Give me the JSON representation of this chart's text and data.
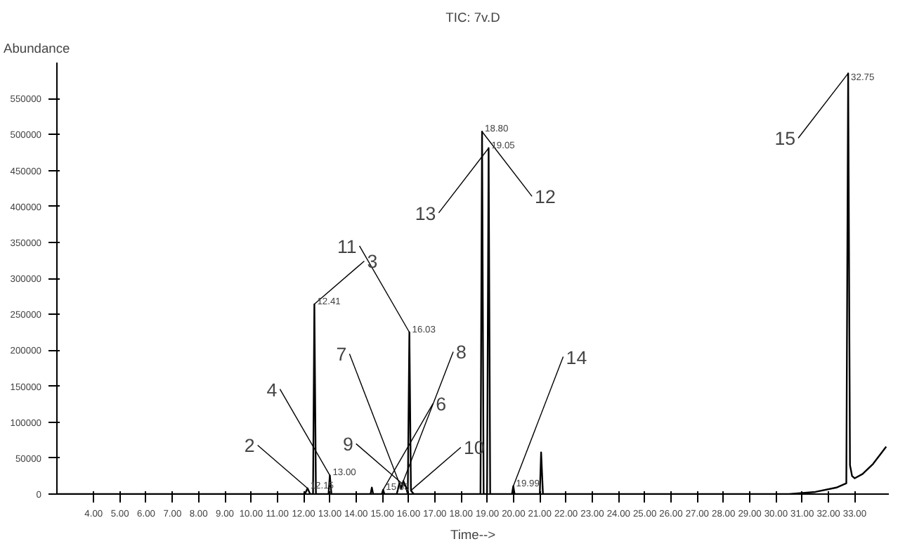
{
  "chart_data": {
    "type": "line",
    "title": "TIC: 7v.D",
    "xlabel": "Time-->",
    "ylabel": "Abundance",
    "xlim": [
      2.6,
      34.3
    ],
    "ylim": [
      0,
      600000
    ],
    "xticks": [
      {
        "value": 4,
        "label": "4.00"
      },
      {
        "value": 5,
        "label": "5.00"
      },
      {
        "value": 6,
        "label": "6.00"
      },
      {
        "value": 7,
        "label": "7.00"
      },
      {
        "value": 8,
        "label": "8.00"
      },
      {
        "value": 9,
        "label": "9.00"
      },
      {
        "value": 10,
        "label": "10.00"
      },
      {
        "value": 11,
        "label": "11.00"
      },
      {
        "value": 12,
        "label": "12.00"
      },
      {
        "value": 13,
        "label": "13.00"
      },
      {
        "value": 14,
        "label": "14.00"
      },
      {
        "value": 15,
        "label": "15.00"
      },
      {
        "value": 16,
        "label": "16.00"
      },
      {
        "value": 17,
        "label": "17.00"
      },
      {
        "value": 18,
        "label": "18.00"
      },
      {
        "value": 19,
        "label": "19.00"
      },
      {
        "value": 20,
        "label": "20.00"
      },
      {
        "value": 21,
        "label": "21.00"
      },
      {
        "value": 22,
        "label": "22.00"
      },
      {
        "value": 23,
        "label": "23.00"
      },
      {
        "value": 24,
        "label": "24.00"
      },
      {
        "value": 25,
        "label": "25.00"
      },
      {
        "value": 26,
        "label": "26.00"
      },
      {
        "value": 27,
        "label": "27.00"
      },
      {
        "value": 28,
        "label": "28.00"
      },
      {
        "value": 29,
        "label": "29.00"
      },
      {
        "value": 30,
        "label": "30.00"
      },
      {
        "value": 31,
        "label": "31.00"
      },
      {
        "value": 32,
        "label": "32.00"
      },
      {
        "value": 33,
        "label": "33.00"
      }
    ],
    "yticks": [
      0,
      50000,
      100000,
      150000,
      200000,
      250000,
      300000,
      350000,
      400000,
      450000,
      500000,
      550000
    ],
    "grid": false,
    "marker": "none",
    "line_style": "solid",
    "series": [
      {
        "color": "#000000",
        "x": [
          2.6,
          12.05,
          12.15,
          12.25,
          12.36,
          12.41,
          12.47,
          12.95,
          13.0,
          13.06,
          14.55,
          14.6,
          14.65,
          14.98,
          15.03,
          15.08,
          15.55,
          15.65,
          15.72,
          15.8,
          15.9,
          15.97,
          16.03,
          16.09,
          16.2,
          18.74,
          18.8,
          18.86,
          18.99,
          19.05,
          19.11,
          19.94,
          19.99,
          20.04,
          21.0,
          21.05,
          21.12,
          30.5,
          31.5,
          32.3,
          32.68,
          32.75,
          32.82,
          32.9,
          33.0,
          33.3,
          33.7,
          34.2
        ],
        "values": [
          0,
          0,
          8000,
          0,
          0,
          264000,
          0,
          0,
          26000,
          0,
          0,
          9000,
          0,
          0,
          6000,
          0,
          0,
          15000,
          8000,
          18000,
          10000,
          0,
          225000,
          5000,
          0,
          0,
          504000,
          0,
          0,
          481000,
          0,
          0,
          11000,
          0,
          0,
          58000,
          0,
          0,
          3000,
          9000,
          15000,
          585000,
          40000,
          25000,
          22000,
          28000,
          42000,
          66000
        ]
      }
    ],
    "annotations": [
      {
        "text": "12.15",
        "x": 12.15,
        "y": 8000
      },
      {
        "text": "12.41",
        "x": 12.41,
        "y": 264000
      },
      {
        "text": "13.00",
        "x": 13.0,
        "y": 26000
      },
      {
        "text": "15.03",
        "x": 15.03,
        "y": 6000
      },
      {
        "text": "16.03",
        "x": 16.03,
        "y": 225000
      },
      {
        "text": "18.80",
        "x": 18.8,
        "y": 504000
      },
      {
        "text": "19.05",
        "x": 19.05,
        "y": 481000
      },
      {
        "text": "19.99",
        "x": 19.99,
        "y": 11000
      },
      {
        "text": "32.75",
        "x": 32.75,
        "y": 585000
      },
      {
        "text": "2",
        "x": 12.15,
        "y": 8000
      },
      {
        "text": "3",
        "x": 12.41,
        "y": 264000
      },
      {
        "text": "4",
        "x": 13.0,
        "y": 26000
      },
      {
        "text": "6",
        "x": 15.03,
        "y": 6000
      },
      {
        "text": "7",
        "x": 15.65,
        "y": 15000
      },
      {
        "text": "8",
        "x": 15.8,
        "y": 18000
      },
      {
        "text": "9",
        "x": 15.9,
        "y": 10000
      },
      {
        "text": "10",
        "x": 16.09,
        "y": 5000
      },
      {
        "text": "11",
        "x": 16.03,
        "y": 225000
      },
      {
        "text": "12",
        "x": 18.8,
        "y": 504000
      },
      {
        "text": "13",
        "x": 19.05,
        "y": 481000
      },
      {
        "text": "14",
        "x": 19.99,
        "y": 11000
      },
      {
        "text": "15",
        "x": 32.75,
        "y": 585000
      }
    ]
  }
}
